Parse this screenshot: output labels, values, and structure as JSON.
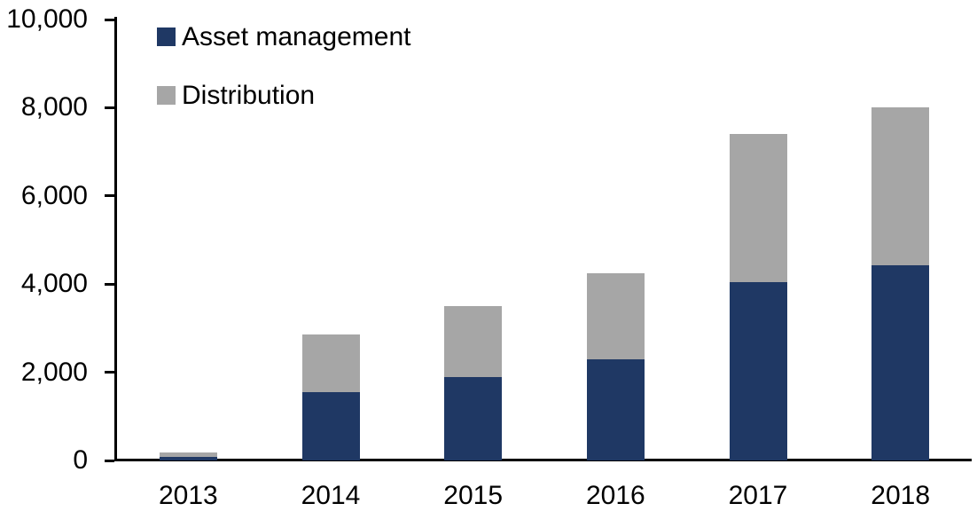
{
  "chart_data": {
    "type": "bar",
    "stacked": true,
    "title": "",
    "xlabel": "",
    "ylabel": "",
    "categories": [
      "2013",
      "2014",
      "2015",
      "2016",
      "2017",
      "2018"
    ],
    "series": [
      {
        "name": "Asset management",
        "color": "#1f3864",
        "values": [
          75,
          1550,
          1900,
          2300,
          4050,
          4420
        ]
      },
      {
        "name": "Distribution",
        "color": "#a6a6a6",
        "values": [
          100,
          1300,
          1600,
          1950,
          3350,
          3580
        ]
      }
    ],
    "totals": [
      175,
      2850,
      3500,
      4250,
      7400,
      8000
    ],
    "ylim": [
      0,
      10000
    ],
    "yticks": [
      0,
      2000,
      4000,
      6000,
      8000,
      10000
    ],
    "ytick_labels": [
      "0",
      "2,000",
      "4,000",
      "6,000",
      "8,000",
      "10,000"
    ],
    "grid": false,
    "legend_position": "top-left",
    "axis_color": "#000000"
  },
  "legend": {
    "items": [
      {
        "label": "Asset management",
        "color": "#1f3864"
      },
      {
        "label": "Distribution",
        "color": "#a6a6a6"
      }
    ]
  }
}
